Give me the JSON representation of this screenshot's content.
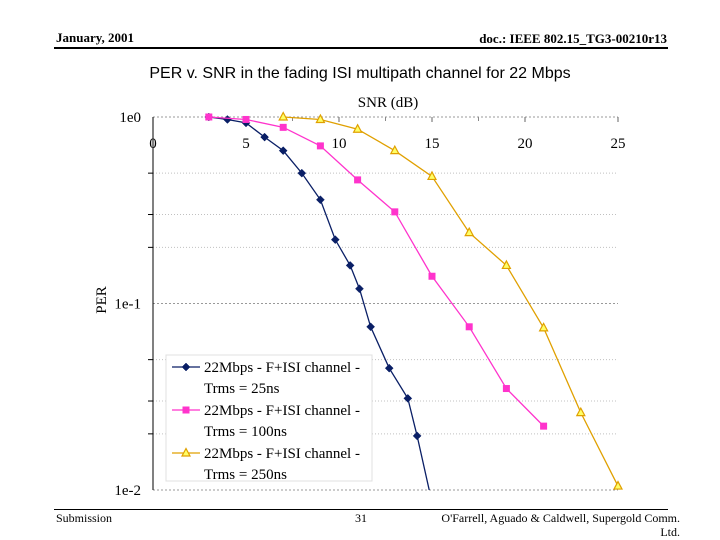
{
  "header": {
    "date": "January, 2001",
    "doc_id": "doc.: IEEE 802.15_TG3-00210r13"
  },
  "footer": {
    "left": "Submission",
    "page": "31",
    "authors": "O'Farrell, Aguado & Caldwell, Supergold Comm. Ltd."
  },
  "chart_data": {
    "type": "line",
    "title": "PER v. SNR in the fading ISI multipath channel for 22 Mbps",
    "xlabel": "SNR (dB)",
    "ylabel": "PER",
    "xlim": [
      0,
      25
    ],
    "ylim": [
      0.01,
      1
    ],
    "yscale": "log",
    "xticks": [
      0,
      5,
      10,
      15,
      20,
      25
    ],
    "xtick_labels": [
      "0",
      "5",
      "10",
      "15",
      "20",
      "25"
    ],
    "x_axis_position": "top",
    "yticks": [
      1,
      0.1,
      0.01
    ],
    "ytick_labels": [
      "1e0",
      "1e-1",
      "1e-2"
    ],
    "grid": true,
    "legend_position": "lower-left",
    "series": [
      {
        "name": "22Mbps - F+ISI channel - Trms = 25ns",
        "color": "#0a1f66",
        "marker": "diamond",
        "points": [
          [
            3,
            1.0
          ],
          [
            4,
            0.97
          ],
          [
            5,
            0.93
          ],
          [
            6,
            0.78
          ],
          [
            7,
            0.66
          ],
          [
            8,
            0.5
          ],
          [
            9,
            0.36
          ],
          [
            9.8,
            0.22
          ],
          [
            10.6,
            0.16
          ],
          [
            11.1,
            0.12
          ],
          [
            11.7,
            0.075
          ],
          [
            12.7,
            0.045
          ],
          [
            13.7,
            0.031
          ],
          [
            14.2,
            0.0195
          ],
          [
            14.9,
            0.0095
          ]
        ]
      },
      {
        "name": "22Mbps - F+ISI channel - Trms = 100ns",
        "color": "#ff33cc",
        "marker": "square",
        "points": [
          [
            3,
            1.0
          ],
          [
            5,
            0.97
          ],
          [
            7,
            0.88
          ],
          [
            9,
            0.7
          ],
          [
            11,
            0.46
          ],
          [
            13,
            0.31
          ],
          [
            15,
            0.14
          ],
          [
            17,
            0.075
          ],
          [
            19,
            0.035
          ],
          [
            21,
            0.022
          ]
        ]
      },
      {
        "name": "22Mbps - F+ISI channel - Trms = 250ns",
        "color": "#e0a000",
        "marker": "triangle",
        "points": [
          [
            7,
            1.0
          ],
          [
            9,
            0.97
          ],
          [
            11,
            0.86
          ],
          [
            13,
            0.66
          ],
          [
            15,
            0.48
          ],
          [
            17,
            0.24
          ],
          [
            19,
            0.16
          ],
          [
            21,
            0.074
          ],
          [
            23,
            0.026
          ],
          [
            25,
            0.0105
          ]
        ]
      }
    ]
  }
}
